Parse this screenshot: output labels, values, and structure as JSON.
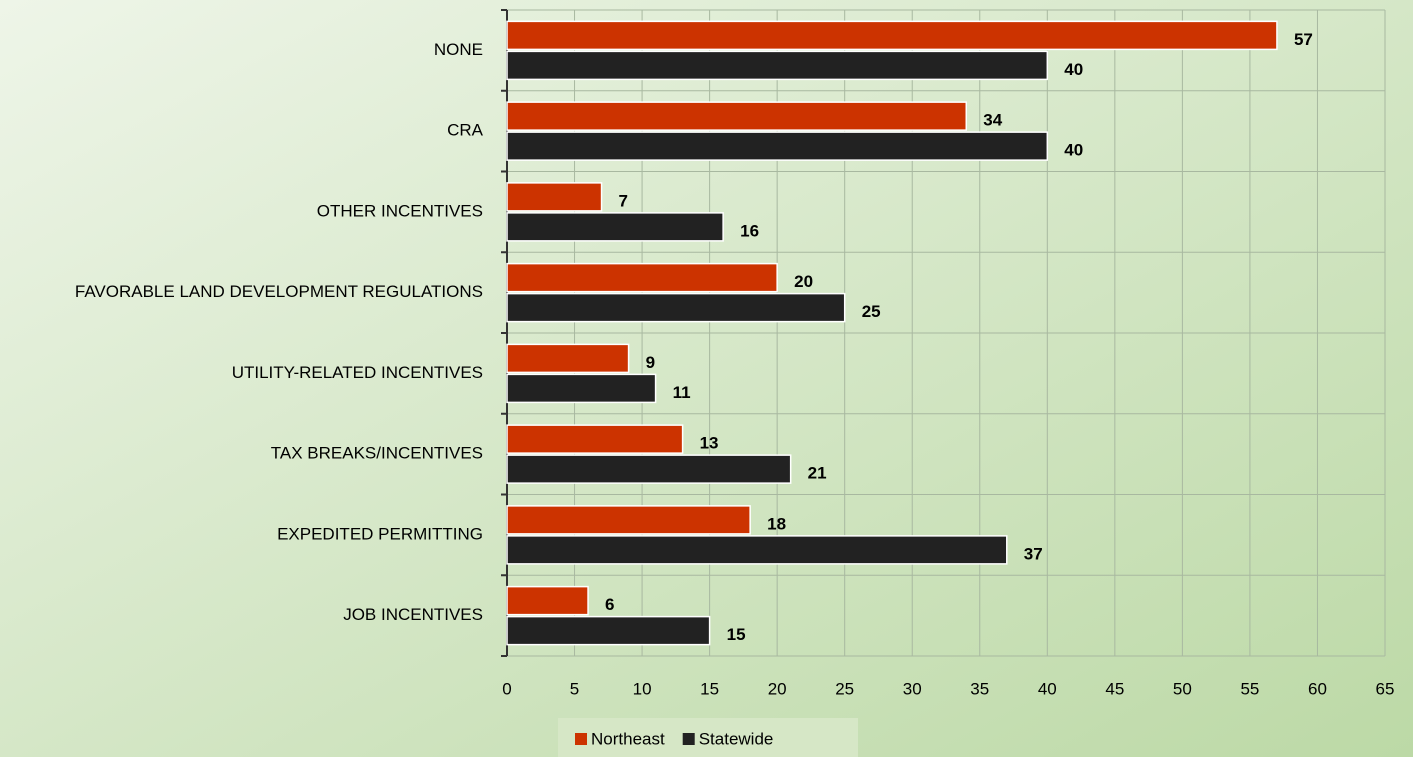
{
  "chart_data": {
    "type": "bar",
    "orientation": "horizontal",
    "categories": [
      "NONE",
      "CRA",
      "OTHER INCENTIVES",
      "FAVORABLE LAND DEVELOPMENT REGULATIONS",
      "UTILITY-RELATED INCENTIVES",
      "TAX BREAKS/INCENTIVES",
      "EXPEDITED PERMITTING",
      "JOB INCENTIVES"
    ],
    "series": [
      {
        "name": "Northeast",
        "color": "#cc3300",
        "values": [
          57,
          34,
          7,
          20,
          9,
          13,
          18,
          6
        ]
      },
      {
        "name": "Statewide",
        "color": "#222222",
        "values": [
          40,
          40,
          16,
          25,
          11,
          21,
          37,
          15
        ]
      }
    ],
    "xlim": [
      0,
      65
    ],
    "xticks": [
      0,
      5,
      10,
      15,
      20,
      25,
      30,
      35,
      40,
      45,
      50,
      55,
      60,
      65
    ],
    "grid": true,
    "legend": "bottom"
  }
}
